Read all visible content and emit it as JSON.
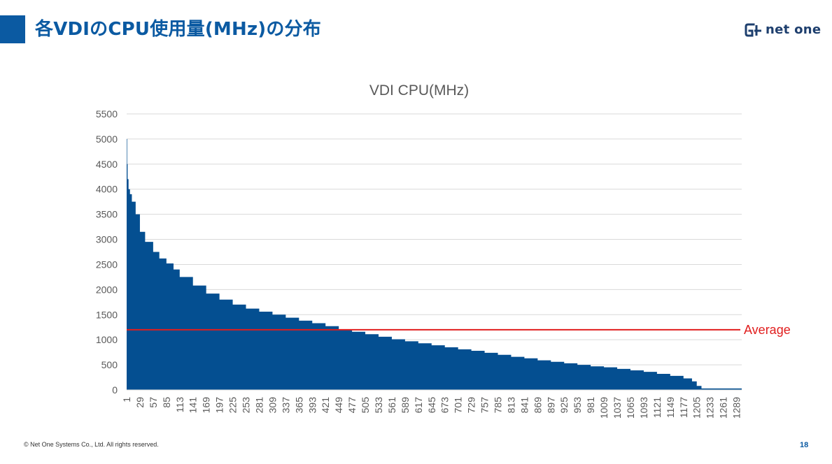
{
  "slide": {
    "title": "各VDIのCPU使用量(MHz)の分布",
    "logo_text": "net one",
    "footer": "© Net One Systems Co., Ltd. All rights reserved.",
    "page_number": "18",
    "accent_color": "#0b5aa2"
  },
  "chart_data": {
    "type": "area",
    "title": "VDI CPU(MHz)",
    "xlabel": "",
    "ylabel": "",
    "ylim": [
      0,
      5500
    ],
    "yticks": [
      0,
      500,
      1000,
      1500,
      2000,
      2500,
      3000,
      3500,
      4000,
      4500,
      5000,
      5500
    ],
    "x_range": [
      1,
      1300
    ],
    "xtick_labels": [
      "1",
      "29",
      "57",
      "85",
      "113",
      "141",
      "169",
      "197",
      "225",
      "253",
      "281",
      "309",
      "337",
      "365",
      "393",
      "421",
      "449",
      "477",
      "505",
      "533",
      "561",
      "589",
      "617",
      "645",
      "673",
      "701",
      "729",
      "757",
      "785",
      "813",
      "841",
      "869",
      "897",
      "925",
      "953",
      "981",
      "1009",
      "1037",
      "1065",
      "1093",
      "1121",
      "1149",
      "1177",
      "1205",
      "1233",
      "1261",
      "1289"
    ],
    "grid": "horizontal",
    "series_color": "#044f91",
    "series": [
      {
        "x": [
          1,
          2,
          3,
          5,
          8,
          12,
          20,
          29,
          40,
          57,
          70,
          85,
          100,
          113,
          141,
          169,
          197,
          225,
          253,
          281,
          309,
          337,
          365,
          393,
          421,
          449,
          477,
          505,
          533,
          561,
          589,
          617,
          645,
          673,
          701,
          729,
          757,
          785,
          813,
          841,
          869,
          897,
          925,
          953,
          981,
          1009,
          1037,
          1065,
          1093,
          1121,
          1149,
          1177,
          1195,
          1205,
          1215,
          1233,
          1261,
          1289,
          1300
        ],
        "values": [
          5000,
          4500,
          4200,
          4000,
          3900,
          3750,
          3500,
          3150,
          2950,
          2750,
          2620,
          2520,
          2400,
          2250,
          2080,
          1920,
          1800,
          1700,
          1620,
          1560,
          1500,
          1440,
          1380,
          1330,
          1270,
          1210,
          1160,
          1110,
          1060,
          1010,
          970,
          930,
          890,
          850,
          810,
          780,
          740,
          700,
          660,
          630,
          590,
          560,
          530,
          500,
          470,
          450,
          420,
          390,
          360,
          320,
          280,
          230,
          170,
          80,
          30,
          30,
          30,
          30,
          30
        ]
      }
    ],
    "reference_line": {
      "label": "Average",
      "value": 1200,
      "color": "#e11e1e"
    }
  }
}
